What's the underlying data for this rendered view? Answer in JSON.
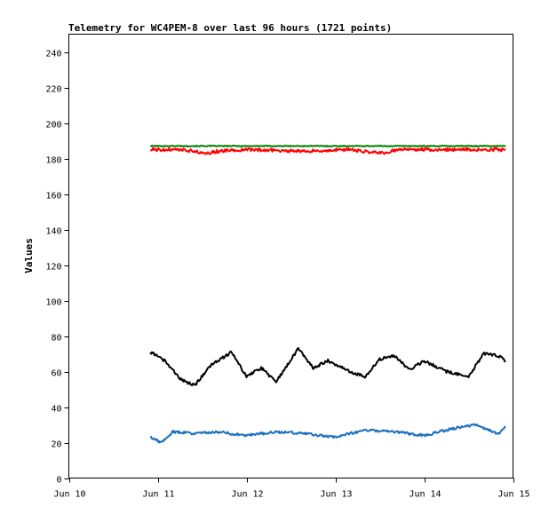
{
  "chart_data": {
    "type": "line",
    "title": "Telemetry for WC4PEM-8 over last 96 hours (1721 points)",
    "xlabel": "",
    "ylabel": "Values",
    "xlim": [
      "Jun 10",
      "Jun 15"
    ],
    "ylim": [
      0,
      250
    ],
    "x_ticks": [
      "Jun 10",
      "Jun 11",
      "Jun 12",
      "Jun 13",
      "Jun 14",
      "Jun 15"
    ],
    "y_ticks": [
      0,
      20,
      40,
      60,
      80,
      100,
      120,
      140,
      160,
      180,
      200,
      220,
      240
    ],
    "grid": false,
    "legend": "none",
    "series": [
      {
        "color": "#008000",
        "x": [
          "Jun 10 22:00",
          "Jun 11 12:00",
          "Jun 12 12:00",
          "Jun 13 12:00",
          "Jun 14 12:00",
          "Jun 14 22:00"
        ],
        "values": [
          187,
          187,
          187,
          187,
          187,
          187
        ]
      },
      {
        "color": "#ff0000",
        "x": [
          "Jun 10 22:00",
          "Jun 11 06:00",
          "Jun 11 14:00",
          "Jun 11 16:00",
          "Jun 12 00:00",
          "Jun 12 16:00",
          "Jun 13 04:00",
          "Jun 13 12:00",
          "Jun 13 18:00",
          "Jun 14 06:00",
          "Jun 14 18:00",
          "Jun 14 22:00"
        ],
        "values": [
          185,
          185,
          183,
          184,
          185,
          184,
          185,
          183,
          185,
          185,
          185,
          185
        ]
      },
      {
        "color": "#000000",
        "x": [
          "Jun 10 22:00",
          "Jun 11 02:00",
          "Jun 11 06:00",
          "Jun 11 10:00",
          "Jun 11 14:00",
          "Jun 11 20:00",
          "Jun 12 00:00",
          "Jun 12 04:00",
          "Jun 12 08:00",
          "Jun 12 14:00",
          "Jun 12 18:00",
          "Jun 12 22:00",
          "Jun 13 04:00",
          "Jun 13 08:00",
          "Jun 13 12:00",
          "Jun 13 16:00",
          "Jun 13 20:00",
          "Jun 14 00:00",
          "Jun 14 06:00",
          "Jun 14 12:00",
          "Jun 14 16:00",
          "Jun 14 20:00",
          "Jun 14 22:00"
        ],
        "values": [
          71,
          66,
          56,
          52,
          63,
          71,
          57,
          62,
          54,
          73,
          62,
          66,
          60,
          57,
          67,
          69,
          61,
          66,
          60,
          57,
          70,
          69,
          66
        ]
      },
      {
        "color": "#1a6fc0",
        "x": [
          "Jun 10 22:00",
          "Jun 11 01:00",
          "Jun 11 04:00",
          "Jun 11 10:00",
          "Jun 11 16:00",
          "Jun 12 00:00",
          "Jun 12 08:00",
          "Jun 12 16:00",
          "Jun 13 00:00",
          "Jun 13 08:00",
          "Jun 13 16:00",
          "Jun 14 00:00",
          "Jun 14 08:00",
          "Jun 14 14:00",
          "Jun 14 20:00",
          "Jun 14 22:00"
        ],
        "values": [
          23,
          20,
          26,
          25,
          26,
          24,
          26,
          25,
          23,
          27,
          26,
          24,
          28,
          30,
          25,
          29
        ]
      }
    ]
  }
}
